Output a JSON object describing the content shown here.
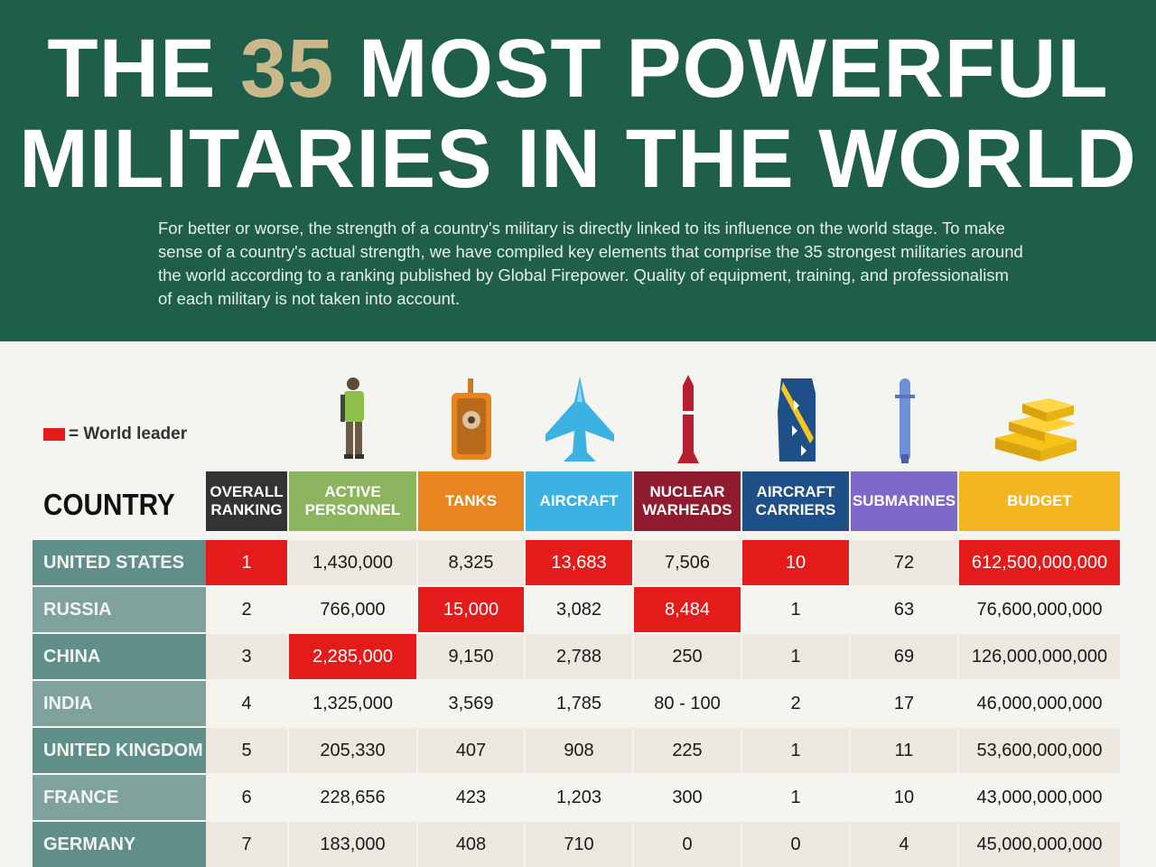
{
  "header": {
    "title_part1": "THE ",
    "title_number": "35",
    "title_part2": " MOST POWERFUL",
    "title_line2": "MILITARIES IN THE WORLD",
    "intro": "For better or worse, the strength of a country's military is directly linked to its influence on the world stage. To make sense of a country's actual strength, we have compiled key elements that comprise the 35 strongest militaries around the world according to a ranking published by Global Firepower. Quality of equipment, training, and professionalism of each military is not taken into account."
  },
  "legend": {
    "label": "= World leader",
    "color": "#e31b1b"
  },
  "colors": {
    "header_bg": "#1e5e4a",
    "accent": "#c9b98a",
    "leader": "#e31b1b",
    "country_col_a": "#5f8f88",
    "country_col_b": "#7fa39c",
    "row_a": "#ece8df",
    "row_b": "#f6f4ef"
  },
  "chart_data": {
    "type": "table",
    "country_header": "COUNTRY",
    "columns": [
      {
        "key": "rank",
        "label": "OVERALL RANKING",
        "color": "#333333",
        "icon": "none"
      },
      {
        "key": "personnel",
        "label": "ACTIVE PERSONNEL",
        "color": "#8db560",
        "icon": "soldier-icon"
      },
      {
        "key": "tanks",
        "label": "TANKS",
        "color": "#e7851f",
        "icon": "tank-icon"
      },
      {
        "key": "aircraft",
        "label": "AIRCRAFT",
        "color": "#3cb2e3",
        "icon": "jet-icon"
      },
      {
        "key": "nuclear",
        "label": "NUCLEAR WARHEADS",
        "color": "#8e1c2e",
        "icon": "missile-icon"
      },
      {
        "key": "carriers",
        "label": "AIRCRAFT CARRIERS",
        "color": "#1e4f86",
        "icon": "carrier-icon"
      },
      {
        "key": "subs",
        "label": "SUBMARINES",
        "color": "#7d6ac8",
        "icon": "submarine-icon"
      },
      {
        "key": "budget",
        "label": "BUDGET",
        "color": "#f3b521",
        "icon": "gold-bars-icon"
      }
    ],
    "rows": [
      {
        "country": "UNITED STATES",
        "values": [
          "1",
          "1,430,000",
          "8,325",
          "13,683",
          "7,506",
          "10",
          "72",
          "612,500,000,000"
        ],
        "leader": [
          "rank",
          "aircraft",
          "carriers",
          "budget"
        ]
      },
      {
        "country": "RUSSIA",
        "values": [
          "2",
          "766,000",
          "15,000",
          "3,082",
          "8,484",
          "1",
          "63",
          "76,600,000,000"
        ],
        "leader": [
          "tanks",
          "nuclear"
        ]
      },
      {
        "country": "CHINA",
        "values": [
          "3",
          "2,285,000",
          "9,150",
          "2,788",
          "250",
          "1",
          "69",
          "126,000,000,000"
        ],
        "leader": [
          "personnel"
        ]
      },
      {
        "country": "INDIA",
        "values": [
          "4",
          "1,325,000",
          "3,569",
          "1,785",
          "80 - 100",
          "2",
          "17",
          "46,000,000,000"
        ],
        "leader": []
      },
      {
        "country": "UNITED KINGDOM",
        "values": [
          "5",
          "205,330",
          "407",
          "908",
          "225",
          "1",
          "11",
          "53,600,000,000"
        ],
        "leader": []
      },
      {
        "country": "FRANCE",
        "values": [
          "6",
          "228,656",
          "423",
          "1,203",
          "300",
          "1",
          "10",
          "43,000,000,000"
        ],
        "leader": []
      },
      {
        "country": "GERMANY",
        "values": [
          "7",
          "183,000",
          "408",
          "710",
          "0",
          "0",
          "4",
          "45,000,000,000"
        ],
        "leader": []
      }
    ]
  }
}
